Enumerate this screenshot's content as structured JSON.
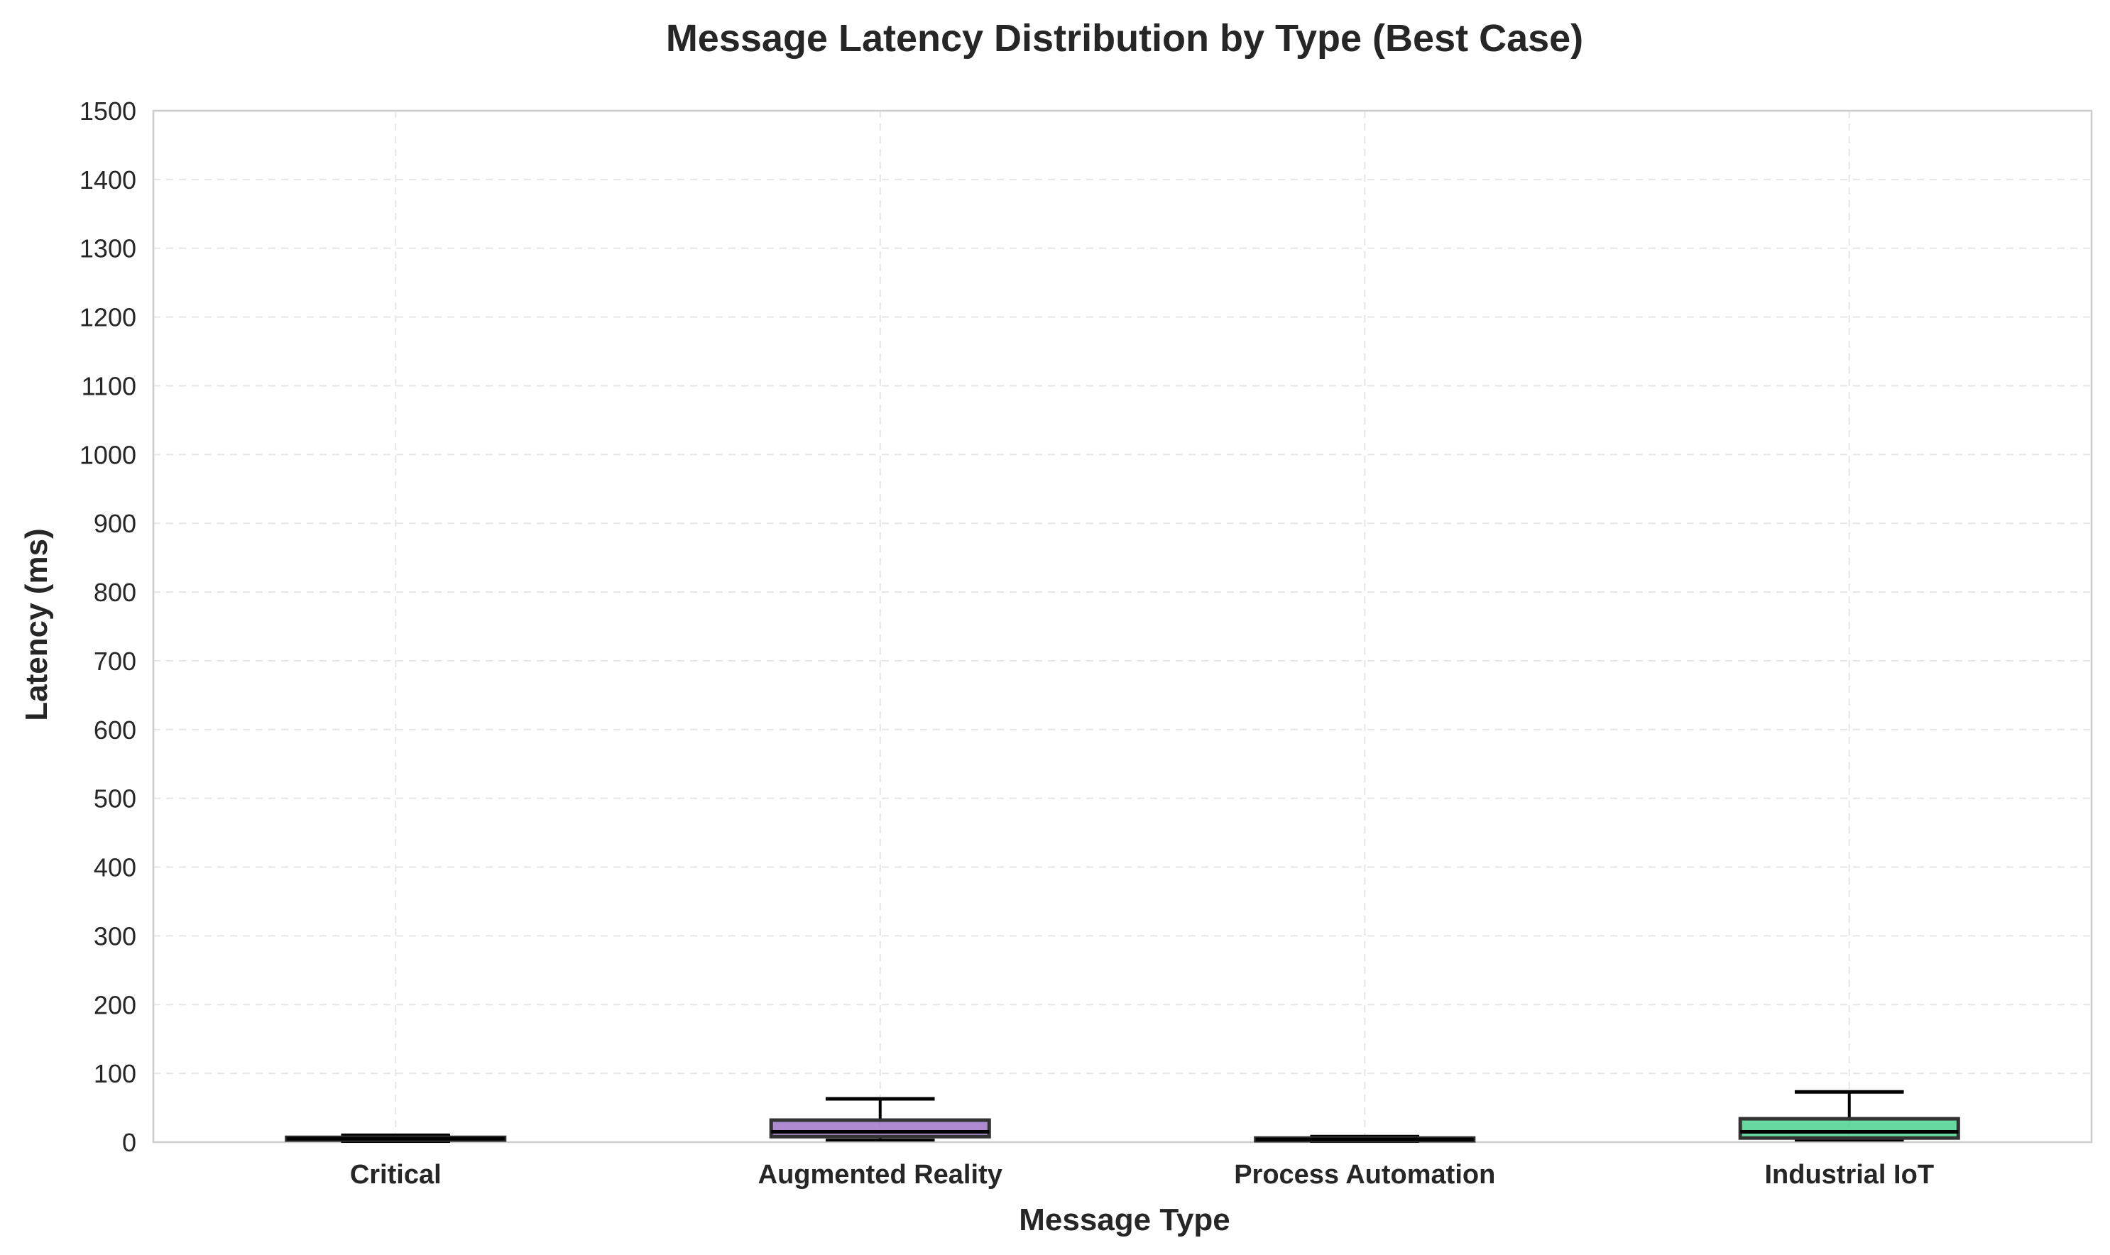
{
  "chart_data": {
    "type": "box",
    "title": "Message Latency Distribution by Type (Best Case)",
    "xlabel": "Message Type",
    "ylabel": "Latency (ms)",
    "ylim": [
      0,
      1500
    ],
    "yticks": [
      0,
      100,
      200,
      300,
      400,
      500,
      600,
      700,
      800,
      900,
      1000,
      1100,
      1200,
      1300,
      1400,
      1500
    ],
    "grid": true,
    "grid_style": "dashed",
    "categories": [
      "Critical",
      "Augmented Reality",
      "Process Automation",
      "Industrial IoT"
    ],
    "boxes": [
      {
        "category": "Critical",
        "whisker_low": 1,
        "q1": 3,
        "median": 5,
        "q3": 7,
        "whisker_high": 10,
        "color": "#4a74c9"
      },
      {
        "category": "Augmented Reality",
        "whisker_low": 3,
        "q1": 8,
        "median": 15,
        "q3": 32,
        "whisker_high": 63,
        "color": "#9b6fc6"
      },
      {
        "category": "Process Automation",
        "whisker_low": 1,
        "q1": 2,
        "median": 4,
        "q3": 6,
        "whisker_high": 8,
        "color": "#4a74c9"
      },
      {
        "category": "Industrial IoT",
        "whisker_low": 3,
        "q1": 6,
        "median": 15,
        "q3": 34,
        "whisker_high": 73,
        "color": "#3ecf87"
      }
    ]
  }
}
